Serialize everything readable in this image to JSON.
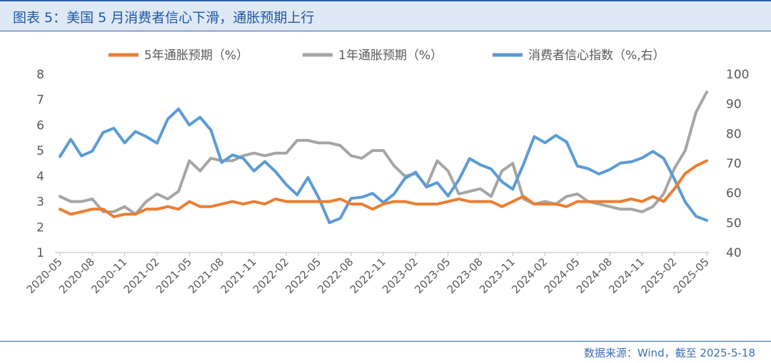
{
  "title": "图表 5：美国 5 月消费者信心下滑，通胀预期上行",
  "source": "数据来源：Wind，截至 2025-5-18",
  "chart_data": {
    "type": "line",
    "x": [
      "2020-05",
      "2020-06",
      "2020-07",
      "2020-08",
      "2020-09",
      "2020-10",
      "2020-11",
      "2020-12",
      "2021-01",
      "2021-02",
      "2021-03",
      "2021-04",
      "2021-05",
      "2021-06",
      "2021-07",
      "2021-08",
      "2021-09",
      "2021-10",
      "2021-11",
      "2021-12",
      "2022-01",
      "2022-02",
      "2022-03",
      "2022-04",
      "2022-05",
      "2022-06",
      "2022-07",
      "2022-08",
      "2022-09",
      "2022-10",
      "2022-11",
      "2022-12",
      "2023-01",
      "2023-02",
      "2023-03",
      "2023-04",
      "2023-05",
      "2023-06",
      "2023-07",
      "2023-08",
      "2023-09",
      "2023-10",
      "2023-11",
      "2023-12",
      "2024-01",
      "2024-02",
      "2024-03",
      "2024-04",
      "2024-05",
      "2024-06",
      "2024-07",
      "2024-08",
      "2024-09",
      "2024-10",
      "2024-11",
      "2024-12",
      "2025-01",
      "2025-02",
      "2025-03",
      "2025-04",
      "2025-05"
    ],
    "xticks": [
      "2020-05",
      "2020-08",
      "2020-11",
      "2021-02",
      "2021-05",
      "2021-08",
      "2021-11",
      "2022-02",
      "2022-05",
      "2022-08",
      "2022-11",
      "2023-02",
      "2023-05",
      "2023-08",
      "2023-11",
      "2024-02",
      "2024-05",
      "2024-08",
      "2024-11",
      "2025-02",
      "2025-05"
    ],
    "ylim_left": [
      1,
      8
    ],
    "yticks_left": [
      "1",
      "2",
      "3",
      "4",
      "5",
      "6",
      "7",
      "8"
    ],
    "ylim_right": [
      40,
      100
    ],
    "yticks_right": [
      "40",
      "50",
      "60",
      "70",
      "80",
      "90",
      "100"
    ],
    "legend_position": "top",
    "series": [
      {
        "name": "5年通胀预期（%）",
        "axis": "left",
        "color": "#ed7d31",
        "values": [
          2.7,
          2.5,
          2.6,
          2.7,
          2.7,
          2.4,
          2.5,
          2.5,
          2.7,
          2.7,
          2.8,
          2.7,
          3.0,
          2.8,
          2.8,
          2.9,
          3.0,
          2.9,
          3.0,
          2.9,
          3.1,
          3.0,
          3.0,
          3.0,
          3.0,
          3.0,
          3.1,
          2.9,
          2.9,
          2.7,
          2.9,
          3.0,
          3.0,
          2.9,
          2.9,
          2.9,
          3.0,
          3.1,
          3.0,
          3.0,
          3.0,
          2.8,
          3.0,
          3.2,
          2.9,
          2.9,
          2.9,
          2.8,
          3.0,
          3.0,
          3.0,
          3.0,
          3.0,
          3.1,
          3.0,
          3.2,
          3.0,
          3.5,
          4.1,
          4.4,
          4.6
        ]
      },
      {
        "name": "1年通胀预期（%）",
        "axis": "left",
        "color": "#a5a5a5",
        "values": [
          3.2,
          3.0,
          3.0,
          3.1,
          2.6,
          2.6,
          2.8,
          2.5,
          3.0,
          3.3,
          3.1,
          3.4,
          4.6,
          4.2,
          4.7,
          4.6,
          4.6,
          4.8,
          4.9,
          4.8,
          4.9,
          4.9,
          5.4,
          5.4,
          5.3,
          5.3,
          5.2,
          4.8,
          4.7,
          5.0,
          5.0,
          4.4,
          4.0,
          4.1,
          3.6,
          4.6,
          4.2,
          3.3,
          3.4,
          3.5,
          3.2,
          4.2,
          4.5,
          3.1,
          2.9,
          3.0,
          2.9,
          3.2,
          3.3,
          3.0,
          2.9,
          2.8,
          2.7,
          2.7,
          2.6,
          2.8,
          3.3,
          4.3,
          5.0,
          6.5,
          7.3
        ]
      },
      {
        "name": "消费者信心指数（%,右）",
        "axis": "right",
        "color": "#5b9bd5",
        "values": [
          72.3,
          78.1,
          72.5,
          74.1,
          80.4,
          81.8,
          76.9,
          80.7,
          79.0,
          76.8,
          84.9,
          88.3,
          82.9,
          85.5,
          81.2,
          70.3,
          72.8,
          71.7,
          67.4,
          70.6,
          67.2,
          62.8,
          59.4,
          65.2,
          58.4,
          50.0,
          51.5,
          58.2,
          58.6,
          59.9,
          56.8,
          59.7,
          64.9,
          67.0,
          62.0,
          63.5,
          59.0,
          64.4,
          71.6,
          69.5,
          68.1,
          63.8,
          61.3,
          69.7,
          79.0,
          76.9,
          79.4,
          77.2,
          69.1,
          68.2,
          66.4,
          67.9,
          70.1,
          70.5,
          71.8,
          74.0,
          71.7,
          64.7,
          57.0,
          52.2,
          50.8
        ]
      }
    ]
  }
}
